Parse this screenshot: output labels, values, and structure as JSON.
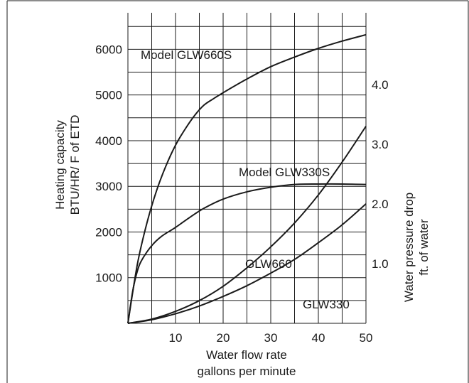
{
  "chart_data": {
    "type": "line",
    "xlabel": [
      "Water flow rate",
      "gallons per minute"
    ],
    "ylabel": [
      "Heating capacity",
      "BTU/HR/ F of ETD"
    ],
    "y2label": [
      "Water pressure drop",
      "ft. of water"
    ],
    "x_ticks": [
      10,
      20,
      30,
      40,
      50
    ],
    "y_ticks": [
      1000,
      2000,
      3000,
      4000,
      5000,
      6000
    ],
    "y2_ticks": [
      1.0,
      2.0,
      3.0,
      4.0
    ],
    "xlim": [
      0,
      50
    ],
    "ylim": [
      0,
      6800
    ],
    "y2lim": [
      0,
      5.2
    ],
    "grid": true,
    "series": [
      {
        "name": "Model GLW660S",
        "axis": "left",
        "x": [
          0,
          2,
          4,
          6,
          8,
          10,
          12,
          14,
          16,
          18,
          20,
          25,
          30,
          35,
          40,
          45,
          50
        ],
        "values": [
          0,
          1300,
          2200,
          2900,
          3450,
          3900,
          4250,
          4550,
          4780,
          4920,
          5050,
          5350,
          5620,
          5830,
          6020,
          6180,
          6320
        ]
      },
      {
        "name": "Model GLW330S",
        "axis": "left",
        "x": [
          0,
          1,
          2,
          3,
          5,
          7,
          10,
          13,
          16,
          20,
          25,
          30,
          35,
          40,
          45,
          50
        ],
        "values": [
          0,
          700,
          1150,
          1400,
          1700,
          1900,
          2100,
          2320,
          2520,
          2720,
          2880,
          2980,
          3040,
          3050,
          3050,
          3040
        ]
      },
      {
        "name": "GLW660",
        "axis": "right",
        "x": [
          0,
          5,
          10,
          15,
          20,
          25,
          30,
          35,
          40,
          45,
          50
        ],
        "values": [
          0,
          0.07,
          0.2,
          0.38,
          0.62,
          0.93,
          1.28,
          1.68,
          2.15,
          2.7,
          3.3
        ]
      },
      {
        "name": "GLW330",
        "axis": "right",
        "x": [
          0,
          5,
          10,
          15,
          20,
          25,
          30,
          35,
          40,
          45,
          50
        ],
        "values": [
          0,
          0.06,
          0.16,
          0.29,
          0.45,
          0.63,
          0.84,
          1.07,
          1.35,
          1.65,
          2.0
        ]
      }
    ]
  }
}
